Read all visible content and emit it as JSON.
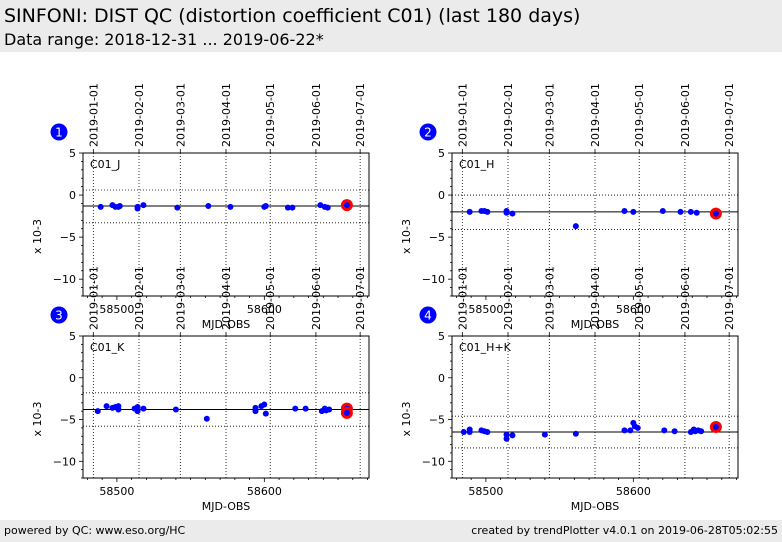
{
  "header": {
    "title": "SINFONI: DIST QC (distortion coefficient C01) (last 180 days)",
    "subtitle": "Data range: 2018-12-31 ... 2019-06-22*"
  },
  "footer": {
    "left": "powered by QC: www.eso.org/HC",
    "right": "created by trendPlotter v4.0.1 on 2019-06-28T05:02:55"
  },
  "colors": {
    "points": "#0000ff",
    "highlight": "#ff0000",
    "badge": "#0000ff",
    "header_bg": "#ebebeb"
  },
  "top_axis_dates": [
    {
      "label": "2019-01-01",
      "mjd": 58484
    },
    {
      "label": "2019-02-01",
      "mjd": 58515
    },
    {
      "label": "2019-03-01",
      "mjd": 58543
    },
    {
      "label": "2019-04-01",
      "mjd": 58574
    },
    {
      "label": "2019-05-01",
      "mjd": 58604
    },
    {
      "label": "2019-06-01",
      "mjd": 58635
    },
    {
      "label": "2019-07-01",
      "mjd": 58665
    }
  ],
  "chart_data": [
    {
      "type": "scatter",
      "badge": "1",
      "panel_label": "C01_J",
      "xlabel": "MJD-OBS",
      "ylabel": "x 10-3",
      "xlim": [
        58477,
        58671
      ],
      "ylim": [
        -12,
        5
      ],
      "xticks": [
        58500,
        58600
      ],
      "yticks": [
        5,
        0,
        -5,
        -10
      ],
      "ref_line": -1.3,
      "tol_lines": [
        0.6,
        -3.3
      ],
      "points": [
        [
          58489,
          -1.4
        ],
        [
          58497,
          -1.2
        ],
        [
          58499,
          -1.4
        ],
        [
          58501,
          -1.4
        ],
        [
          58502,
          -1.3
        ],
        [
          58514,
          -1.4
        ],
        [
          58514,
          -1.6
        ],
        [
          58518,
          -1.2
        ],
        [
          58541,
          -1.5
        ],
        [
          58562,
          -1.3
        ],
        [
          58577,
          -1.4
        ],
        [
          58600,
          -1.4
        ],
        [
          58601,
          -1.3
        ],
        [
          58616,
          -1.5
        ],
        [
          58619,
          -1.5
        ],
        [
          58638,
          -1.2
        ],
        [
          58641,
          -1.4
        ],
        [
          58643,
          -1.5
        ]
      ],
      "highlight": [
        [
          58656,
          -1.2
        ]
      ]
    },
    {
      "type": "scatter",
      "badge": "2",
      "panel_label": "C01_H",
      "xlabel": "MJD-OBS",
      "ylabel": "x 10-3",
      "xlim": [
        58477,
        58671
      ],
      "ylim": [
        -12,
        5
      ],
      "xticks": [
        58500,
        58600
      ],
      "yticks": [
        5,
        0,
        -5,
        -10
      ],
      "ref_line": -2.0,
      "tol_lines": [
        0.0,
        -4.1
      ],
      "points": [
        [
          58489,
          -2.0
        ],
        [
          58497,
          -1.9
        ],
        [
          58499,
          -1.9
        ],
        [
          58501,
          -2.0
        ],
        [
          58514,
          -1.9
        ],
        [
          58514,
          -2.1
        ],
        [
          58518,
          -2.2
        ],
        [
          58561,
          -3.7
        ],
        [
          58594,
          -1.9
        ],
        [
          58600,
          -2.0
        ],
        [
          58620,
          -1.9
        ],
        [
          58632,
          -2.0
        ],
        [
          58639,
          -2.0
        ],
        [
          58643,
          -2.1
        ]
      ],
      "highlight": [
        [
          58656,
          -2.2
        ]
      ]
    },
    {
      "type": "scatter",
      "badge": "3",
      "panel_label": "C01_K",
      "xlabel": "MJD-OBS",
      "ylabel": "x 10-3",
      "xlim": [
        58477,
        58671
      ],
      "ylim": [
        -12,
        5
      ],
      "xticks": [
        58500,
        58600
      ],
      "yticks": [
        5,
        0,
        -5,
        -10
      ],
      "ref_line": -3.8,
      "tol_lines": [
        -1.8,
        -5.8
      ],
      "points": [
        [
          58487,
          -4.0
        ],
        [
          58493,
          -3.4
        ],
        [
          58497,
          -3.6
        ],
        [
          58499,
          -3.5
        ],
        [
          58501,
          -3.4
        ],
        [
          58501,
          -3.8
        ],
        [
          58512,
          -3.7
        ],
        [
          58514,
          -3.5
        ],
        [
          58514,
          -4.0
        ],
        [
          58518,
          -3.7
        ],
        [
          58540,
          -3.8
        ],
        [
          58561,
          -4.9
        ],
        [
          58594,
          -3.6
        ],
        [
          58594,
          -4.0
        ],
        [
          58598,
          -3.4
        ],
        [
          58600,
          -3.2
        ],
        [
          58601,
          -4.3
        ],
        [
          58621,
          -3.7
        ],
        [
          58628,
          -3.7
        ],
        [
          58639,
          -4.0
        ],
        [
          58641,
          -3.7
        ],
        [
          58642,
          -3.9
        ],
        [
          58644,
          -3.8
        ]
      ],
      "highlight": [
        [
          58656,
          -3.7
        ],
        [
          58656,
          -4.2
        ]
      ]
    },
    {
      "type": "scatter",
      "badge": "4",
      "panel_label": "C01_H+K",
      "xlabel": "MJD-OBS",
      "ylabel": "x 10-3",
      "xlim": [
        58477,
        58671
      ],
      "ylim": [
        -12,
        5
      ],
      "xticks": [
        58500,
        58600
      ],
      "yticks": [
        5,
        0,
        -5,
        -10
      ],
      "ref_line": -6.5,
      "tol_lines": [
        -4.6,
        -8.4
      ],
      "points": [
        [
          58485,
          -6.5
        ],
        [
          58489,
          -6.2
        ],
        [
          58489,
          -6.5
        ],
        [
          58497,
          -6.3
        ],
        [
          58499,
          -6.4
        ],
        [
          58501,
          -6.5
        ],
        [
          58514,
          -6.8
        ],
        [
          58514,
          -7.3
        ],
        [
          58518,
          -6.9
        ],
        [
          58540,
          -6.8
        ],
        [
          58561,
          -6.7
        ],
        [
          58594,
          -6.3
        ],
        [
          58598,
          -6.3
        ],
        [
          58600,
          -5.4
        ],
        [
          58601,
          -5.8
        ],
        [
          58603,
          -6.0
        ],
        [
          58621,
          -6.3
        ],
        [
          58628,
          -6.4
        ],
        [
          58639,
          -6.5
        ],
        [
          58641,
          -6.2
        ],
        [
          58642,
          -6.4
        ],
        [
          58644,
          -6.3
        ],
        [
          58646,
          -6.4
        ]
      ],
      "highlight": [
        [
          58656,
          -5.9
        ]
      ]
    }
  ]
}
